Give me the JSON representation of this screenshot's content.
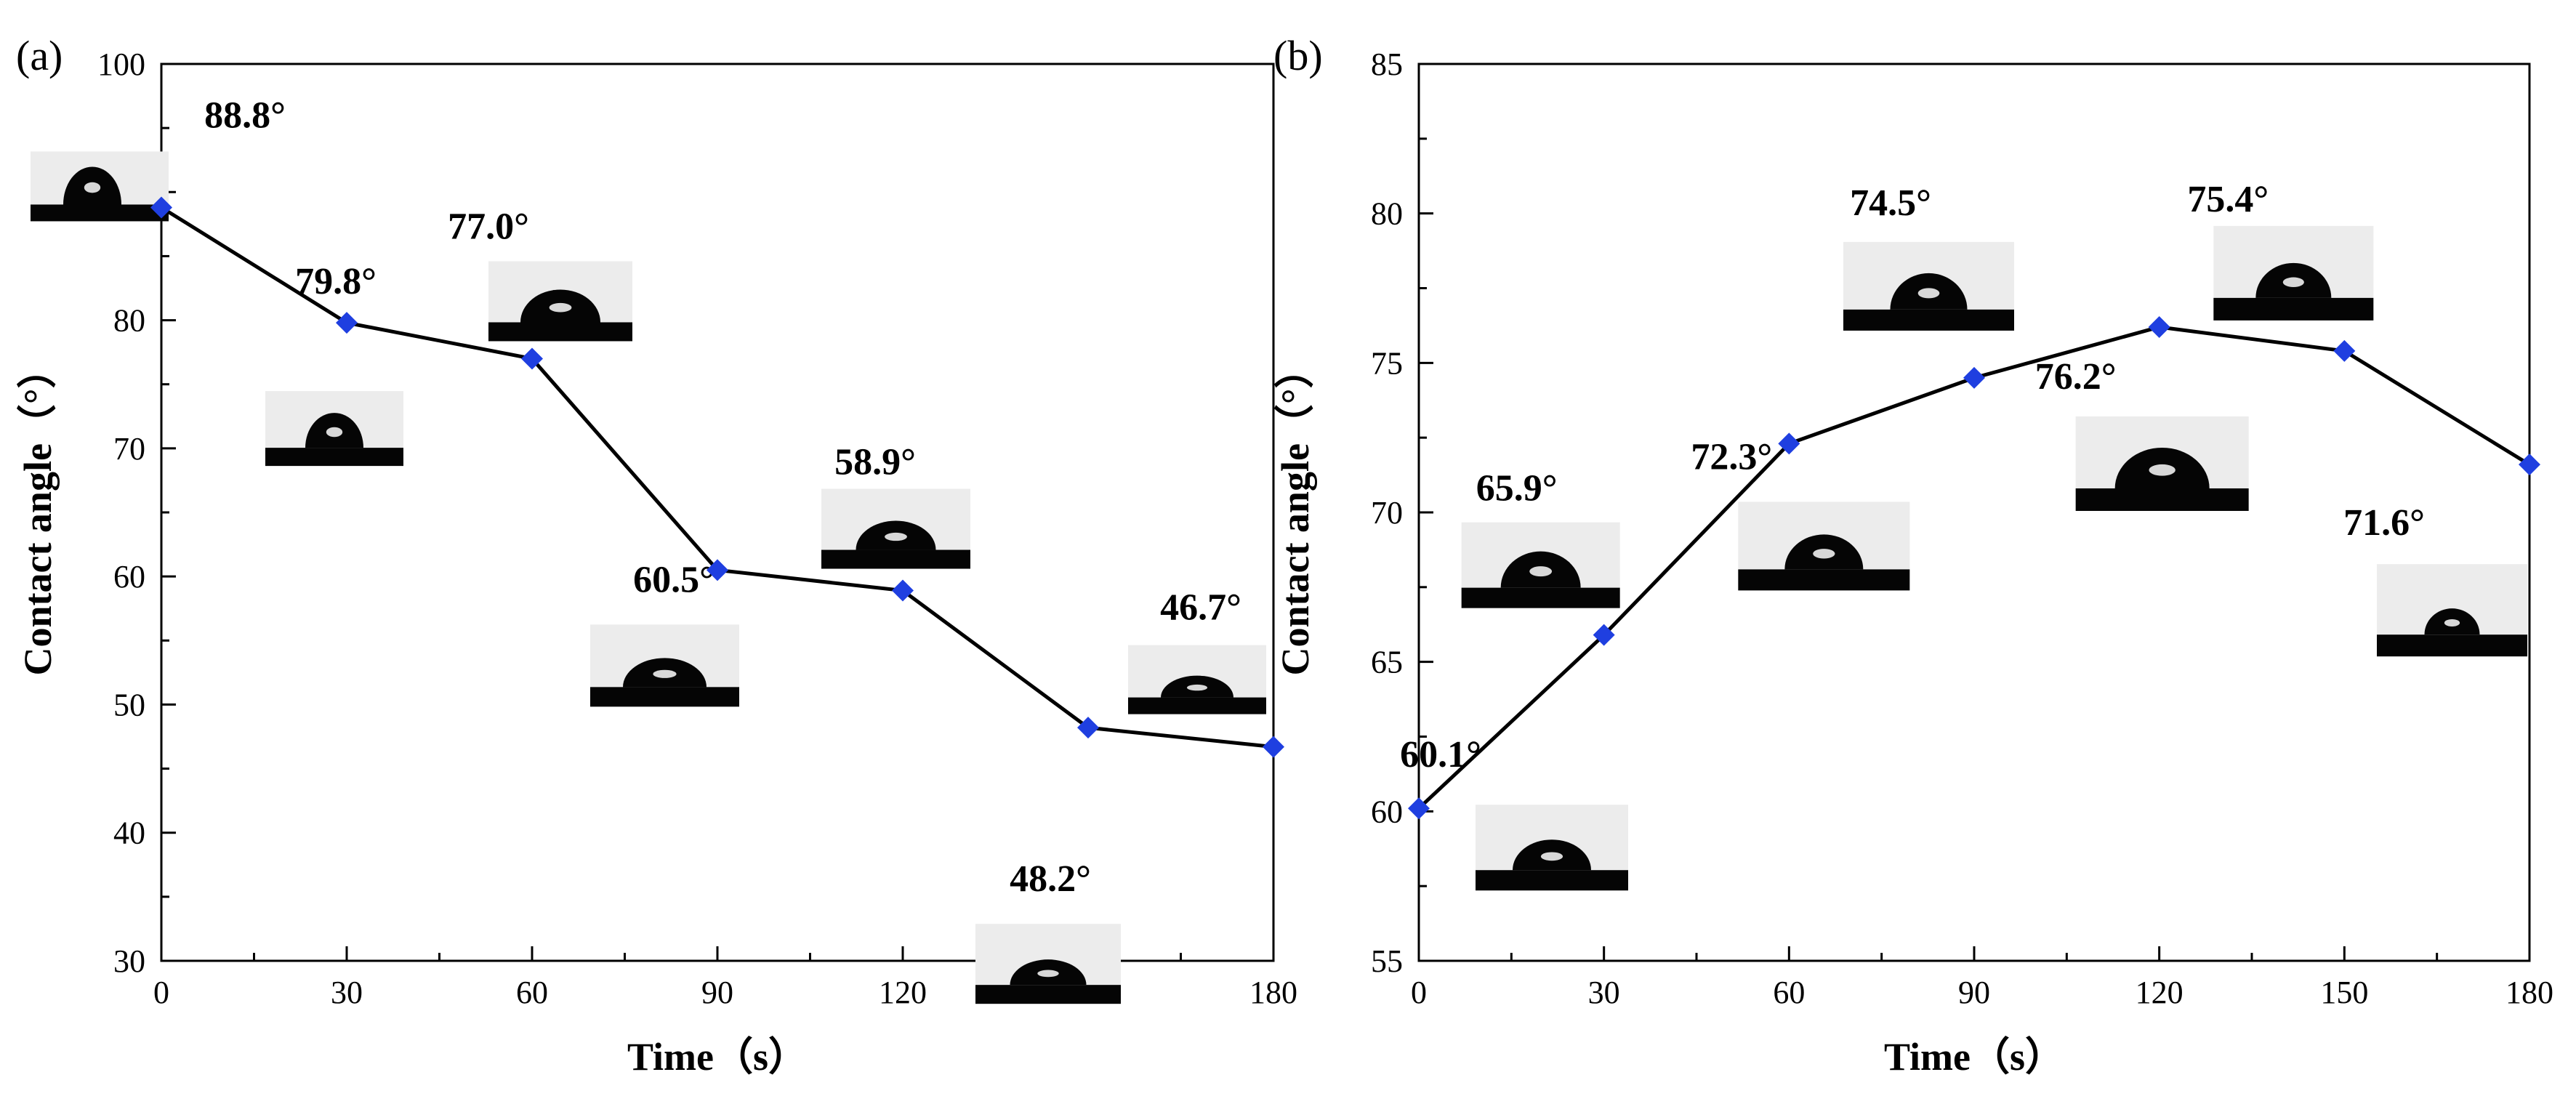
{
  "chart_data": [
    {
      "type": "line",
      "panel_label": "(a)",
      "title": "",
      "xlabel": "Time（s）",
      "ylabel": "Contact angle（°）",
      "xlim": [
        0,
        180
      ],
      "ylim": [
        30,
        100
      ],
      "x_ticks": [
        "0",
        "30",
        "60",
        "90",
        "120",
        "150",
        "180"
      ],
      "y_ticks": [
        "30",
        "40",
        "50",
        "60",
        "70",
        "80",
        "90",
        "100"
      ],
      "x": [
        0,
        30,
        60,
        90,
        120,
        150,
        180
      ],
      "values": [
        88.8,
        79.8,
        77.0,
        60.5,
        58.9,
        48.2,
        46.7
      ],
      "annotations": [
        "88.8°",
        "79.8°",
        "77.0°",
        "60.5°",
        "58.9°",
        "48.2°",
        "46.7°"
      ],
      "marker_color": "#1f3fe0",
      "line_color": "#000000"
    },
    {
      "type": "line",
      "panel_label": "(b)",
      "title": "",
      "xlabel": "Time（s）",
      "ylabel": "Contact angle（°）",
      "xlim": [
        0,
        180
      ],
      "ylim": [
        55,
        85
      ],
      "x_ticks": [
        "0",
        "30",
        "60",
        "90",
        "120",
        "150",
        "180"
      ],
      "y_ticks": [
        "55",
        "60",
        "65",
        "70",
        "75",
        "80",
        "85"
      ],
      "x": [
        0,
        30,
        60,
        90,
        120,
        150,
        180
      ],
      "values": [
        60.1,
        65.9,
        72.3,
        74.5,
        76.2,
        75.4,
        71.6
      ],
      "annotations": [
        "60.1°",
        "65.9°",
        "72.3°",
        "74.5°",
        "76.2°",
        "75.4°",
        "71.6°"
      ],
      "marker_color": "#1f3fe0",
      "line_color": "#000000"
    }
  ]
}
